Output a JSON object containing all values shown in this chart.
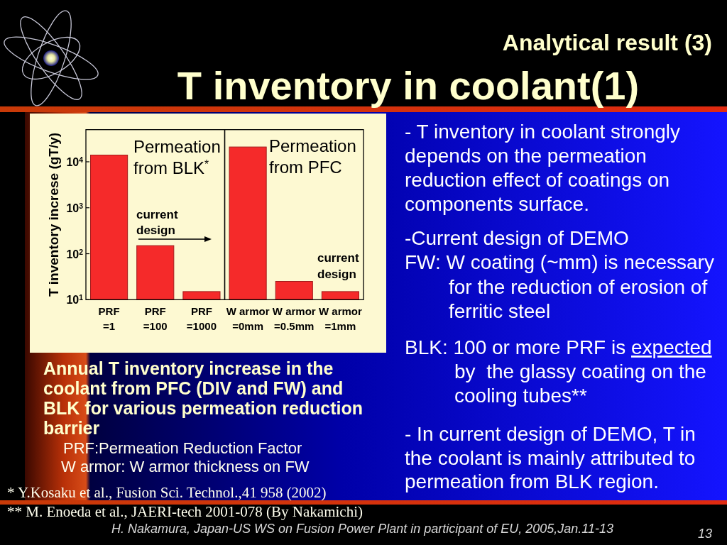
{
  "chart_data": {
    "type": "bar",
    "title": "T inventory in coolant(1)",
    "subtitle": "Analytical result (3)",
    "ylabel": "T inventory increse (gT/y)",
    "categories": [
      "PRF\n=1",
      "PRF\n=100",
      "PRF\n=1000",
      "W armor\n=0mm",
      "W armor\n=0.5mm",
      "W armor\n=1mm"
    ],
    "values": [
      14000,
      150,
      15,
      21000,
      25,
      15
    ],
    "color": "#f52a2a",
    "log": true,
    "ylim": [
      10,
      50000
    ],
    "yticks": [
      {
        "value": 10,
        "label": "10$^{1}$"
      },
      {
        "value": 100,
        "label": "10$^{2}$"
      },
      {
        "value": 1000,
        "label": "10$^{3}$"
      },
      {
        "value": 10000,
        "label": "10$^{4}$"
      }
    ],
    "annotations": [
      "Permeation\nfrom BLK$^{*}$",
      "Permeation\nfrom PFC",
      "current\ndesign",
      "current\ndesign",
      "- T inventory in coolant strongly\ndepends on the permeation\nreduction effect of coatings on\ncomponents surface.",
      "-Current design of DEMO\nFW: W coating (~mm) is necessary\nfor the reduction of erosion of\nferritic steel",
      "BLK: 100 or more PRF is expected\nby  the glassy coating on the\ncooling tubes**",
      "- In current design of DEMO, T in\nthe coolant is mainly attributed to\npermeation from BLK region.",
      "Annual T inventory increase in the\ncoolant from PFC (DIV and FW) and\nBLK for various permeation reduction\nbarrier",
      "PRF:Permeation Reduction Factor",
      "W armor: W armor thickness on FW",
      "* Y.Kosaku et al., Fusion Sci. Technol.,41 958 (2002)",
      "** M. Enoeda et al., JAERI-tech 2001-078 (By Nakamichi)",
      "H. Nakamura, Japan-US WS on Fusion Power Plant in participant of EU, 2005,Jan.11-13",
      "13"
    ]
  }
}
